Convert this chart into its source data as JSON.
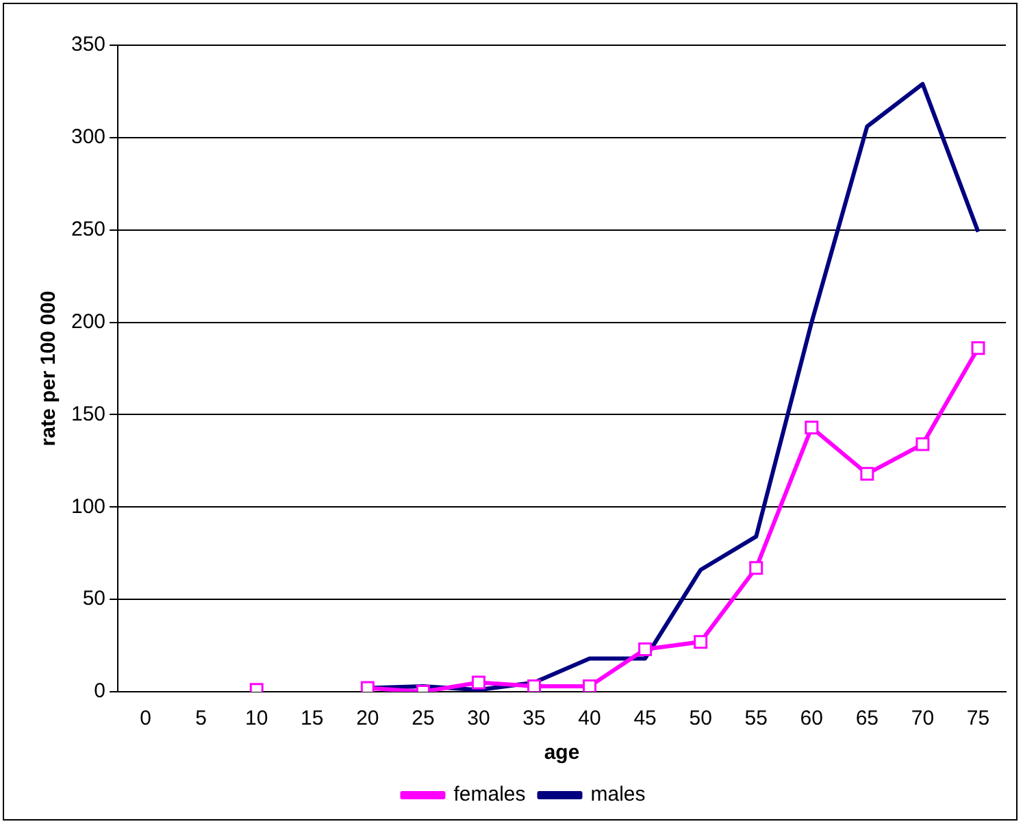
{
  "chart_data": {
    "type": "line",
    "xlabel": "age",
    "ylabel": "rate per 100 000",
    "categories": [
      "0",
      "5",
      "10",
      "15",
      "20",
      "25",
      "30",
      "35",
      "40",
      "45",
      "50",
      "55",
      "60",
      "65",
      "70",
      "75"
    ],
    "series": [
      {
        "name": "males",
        "color": "#000080",
        "marker": "none",
        "values": [
          null,
          null,
          null,
          null,
          2,
          3,
          1,
          5,
          18,
          18,
          66,
          84,
          200,
          306,
          329,
          249
        ]
      },
      {
        "name": "females",
        "color": "#ff00ff",
        "marker": "square",
        "values": [
          null,
          null,
          1,
          null,
          2,
          0,
          5,
          3,
          3,
          23,
          27,
          67,
          143,
          118,
          134,
          186
        ]
      }
    ],
    "ylim": [
      0,
      350
    ],
    "yticks": [
      0,
      50,
      100,
      150,
      200,
      250,
      300,
      350
    ],
    "grid": "y",
    "legend": "bottom"
  }
}
